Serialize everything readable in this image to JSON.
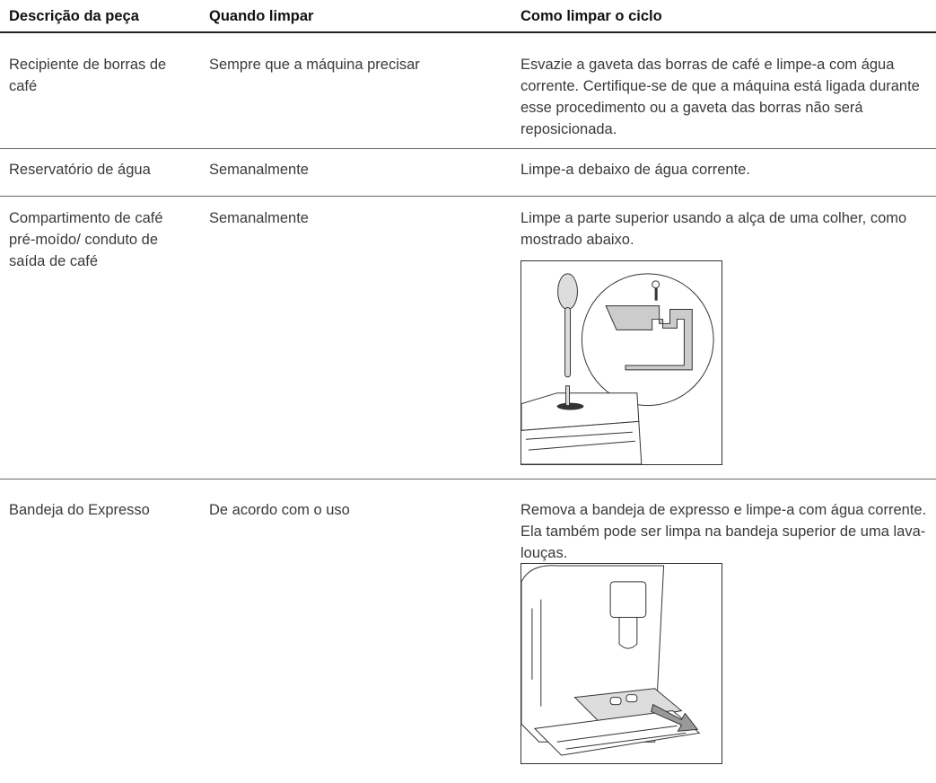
{
  "table": {
    "columns": [
      "Descrição da peça",
      "Quando limpar",
      "Como limpar o ciclo"
    ],
    "rows": [
      [
        "Recipiente de borras de café",
        "Sempre que a máquina precisar",
        "Esvazie a gaveta das borras de café e limpe-a com água corrente. Certifique-se de que a máquina está ligada durante esse procedimento ou a gaveta das borras não será reposicionada."
      ],
      [
        "Reservatório de água",
        "Semanalmente",
        "Limpe-a debaixo de água corrente."
      ],
      [
        "Compartimento de café pré-moído/ conduto de saída de café",
        "Semanalmente",
        "Limpe a parte superior usando a alça de uma colher, como mostrado abaixo."
      ],
      [
        "Bandeja do Expresso",
        "De acordo com o uso",
        "Remova a bandeja de expresso e limpe-a com água corrente. Ela também pode ser limpa na bandeja superior de uma lava-louças."
      ]
    ]
  }
}
